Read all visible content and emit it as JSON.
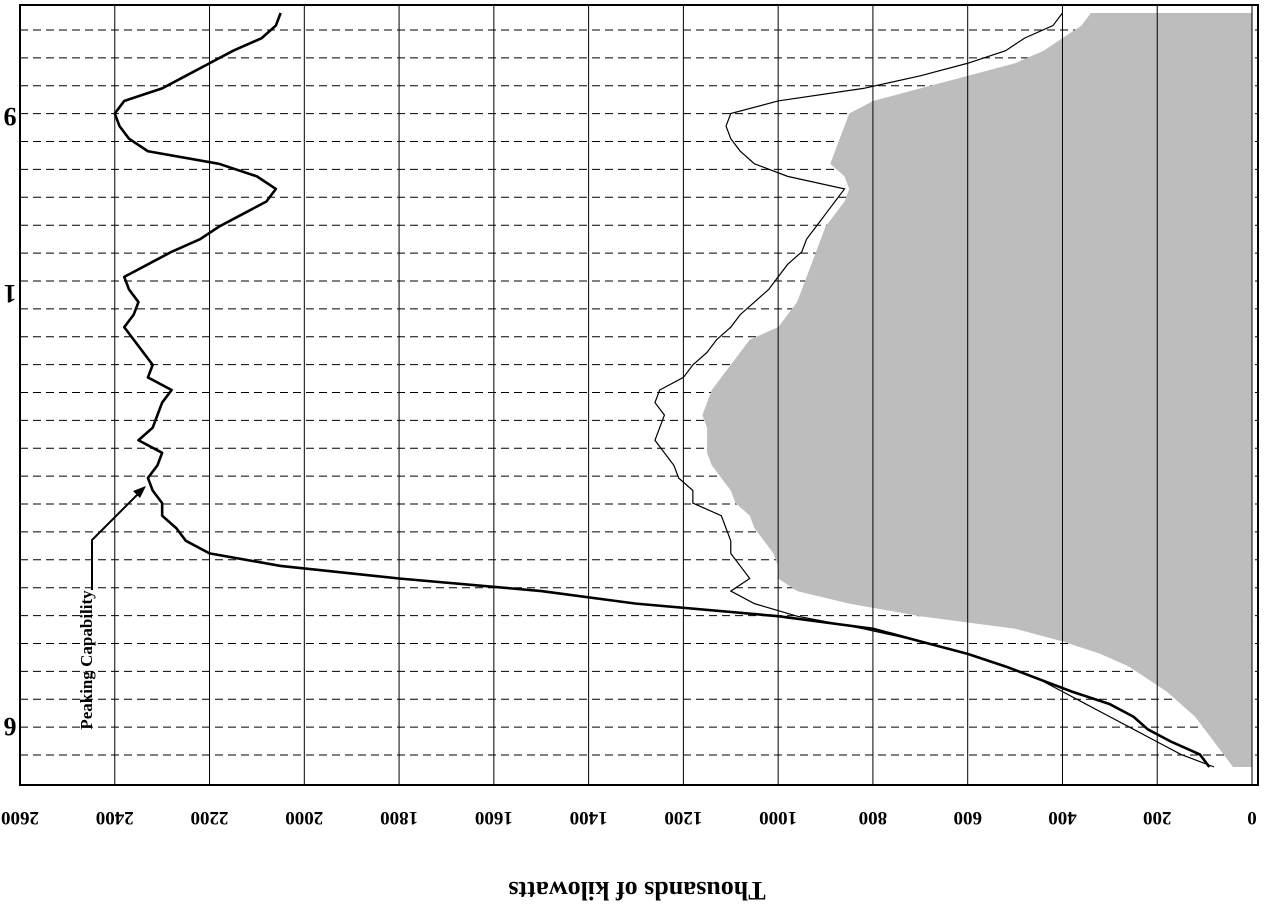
{
  "chart_data": {
    "type": "area",
    "orientation": "rotated-180",
    "ylabel": "Thousands of kilowatts",
    "ylim": [
      0,
      2600
    ],
    "y_ticks": [
      0,
      200,
      400,
      600,
      800,
      1000,
      1200,
      1400,
      1600,
      1800,
      2000,
      2200,
      2400,
      2600
    ],
    "y_tick_labels": [
      "0",
      "200",
      "400",
      "600",
      "800",
      "1000",
      "1200",
      "1400",
      "1600",
      "1800",
      "2000",
      "2200",
      "2400",
      "2600"
    ],
    "grid": {
      "y": "solid",
      "x": "dashed"
    },
    "edge_labels": [
      "9",
      "1",
      "6"
    ],
    "annotation": {
      "text": "Peaking Capability"
    },
    "x": [
      0,
      1,
      2,
      3,
      4,
      5,
      6,
      7,
      8,
      9,
      10,
      11,
      12,
      13,
      14,
      15,
      16,
      17,
      18,
      19,
      20,
      21,
      22,
      23,
      24,
      25,
      26,
      27,
      28,
      29,
      30,
      31,
      32,
      33,
      34,
      35,
      36,
      37,
      38,
      39,
      40,
      41,
      42,
      43,
      44,
      45,
      46,
      47,
      48,
      49,
      50,
      51,
      52,
      53,
      54,
      55,
      56,
      57,
      58,
      59,
      60
    ],
    "series": [
      {
        "name": "Peaking Capability",
        "style": "line",
        "values": [
          90,
          110,
          170,
          220,
          250,
          300,
          380,
          450,
          520,
          600,
          700,
          800,
          1000,
          1300,
          1500,
          1800,
          2050,
          2200,
          2250,
          2270,
          2300,
          2300,
          2320,
          2330,
          2310,
          2300,
          2350,
          2320,
          2310,
          2300,
          2280,
          2330,
          2320,
          2340,
          2360,
          2380,
          2360,
          2350,
          2370,
          2380,
          2330,
          2280,
          2220,
          2180,
          2130,
          2080,
          2060,
          2100,
          2180,
          2330,
          2370,
          2390,
          2400,
          2380,
          2300,
          2250,
          2200,
          2150,
          2090,
          2060,
          2050
        ]
      },
      {
        "name": "",
        "style": "area-envelope",
        "values": [
          80,
          150,
          200,
          250,
          300,
          350,
          400,
          450,
          520,
          600,
          700,
          820,
          960,
          1050,
          1100,
          1060,
          1080,
          1100,
          1100,
          1110,
          1120,
          1180,
          1180,
          1210,
          1220,
          1240,
          1260,
          1250,
          1240,
          1260,
          1250,
          1200,
          1180,
          1150,
          1130,
          1100,
          1080,
          1050,
          1020,
          1000,
          980,
          950,
          940,
          920,
          900,
          880,
          860,
          980,
          1050,
          1080,
          1100,
          1110,
          1100,
          1000,
          820,
          700,
          600,
          520,
          480,
          420,
          400
        ]
      },
      {
        "name": "",
        "style": "filled-area",
        "values": [
          40,
          60,
          80,
          100,
          120,
          150,
          180,
          220,
          260,
          320,
          400,
          500,
          700,
          850,
          960,
          1000,
          1000,
          1010,
          1030,
          1050,
          1060,
          1090,
          1100,
          1120,
          1140,
          1150,
          1150,
          1150,
          1160,
          1150,
          1140,
          1120,
          1100,
          1080,
          1060,
          1000,
          980,
          960,
          950,
          940,
          930,
          920,
          910,
          900,
          880,
          860,
          850,
          860,
          890,
          880,
          870,
          860,
          850,
          800,
          700,
          600,
          500,
          440,
          400,
          360,
          340
        ]
      }
    ]
  }
}
